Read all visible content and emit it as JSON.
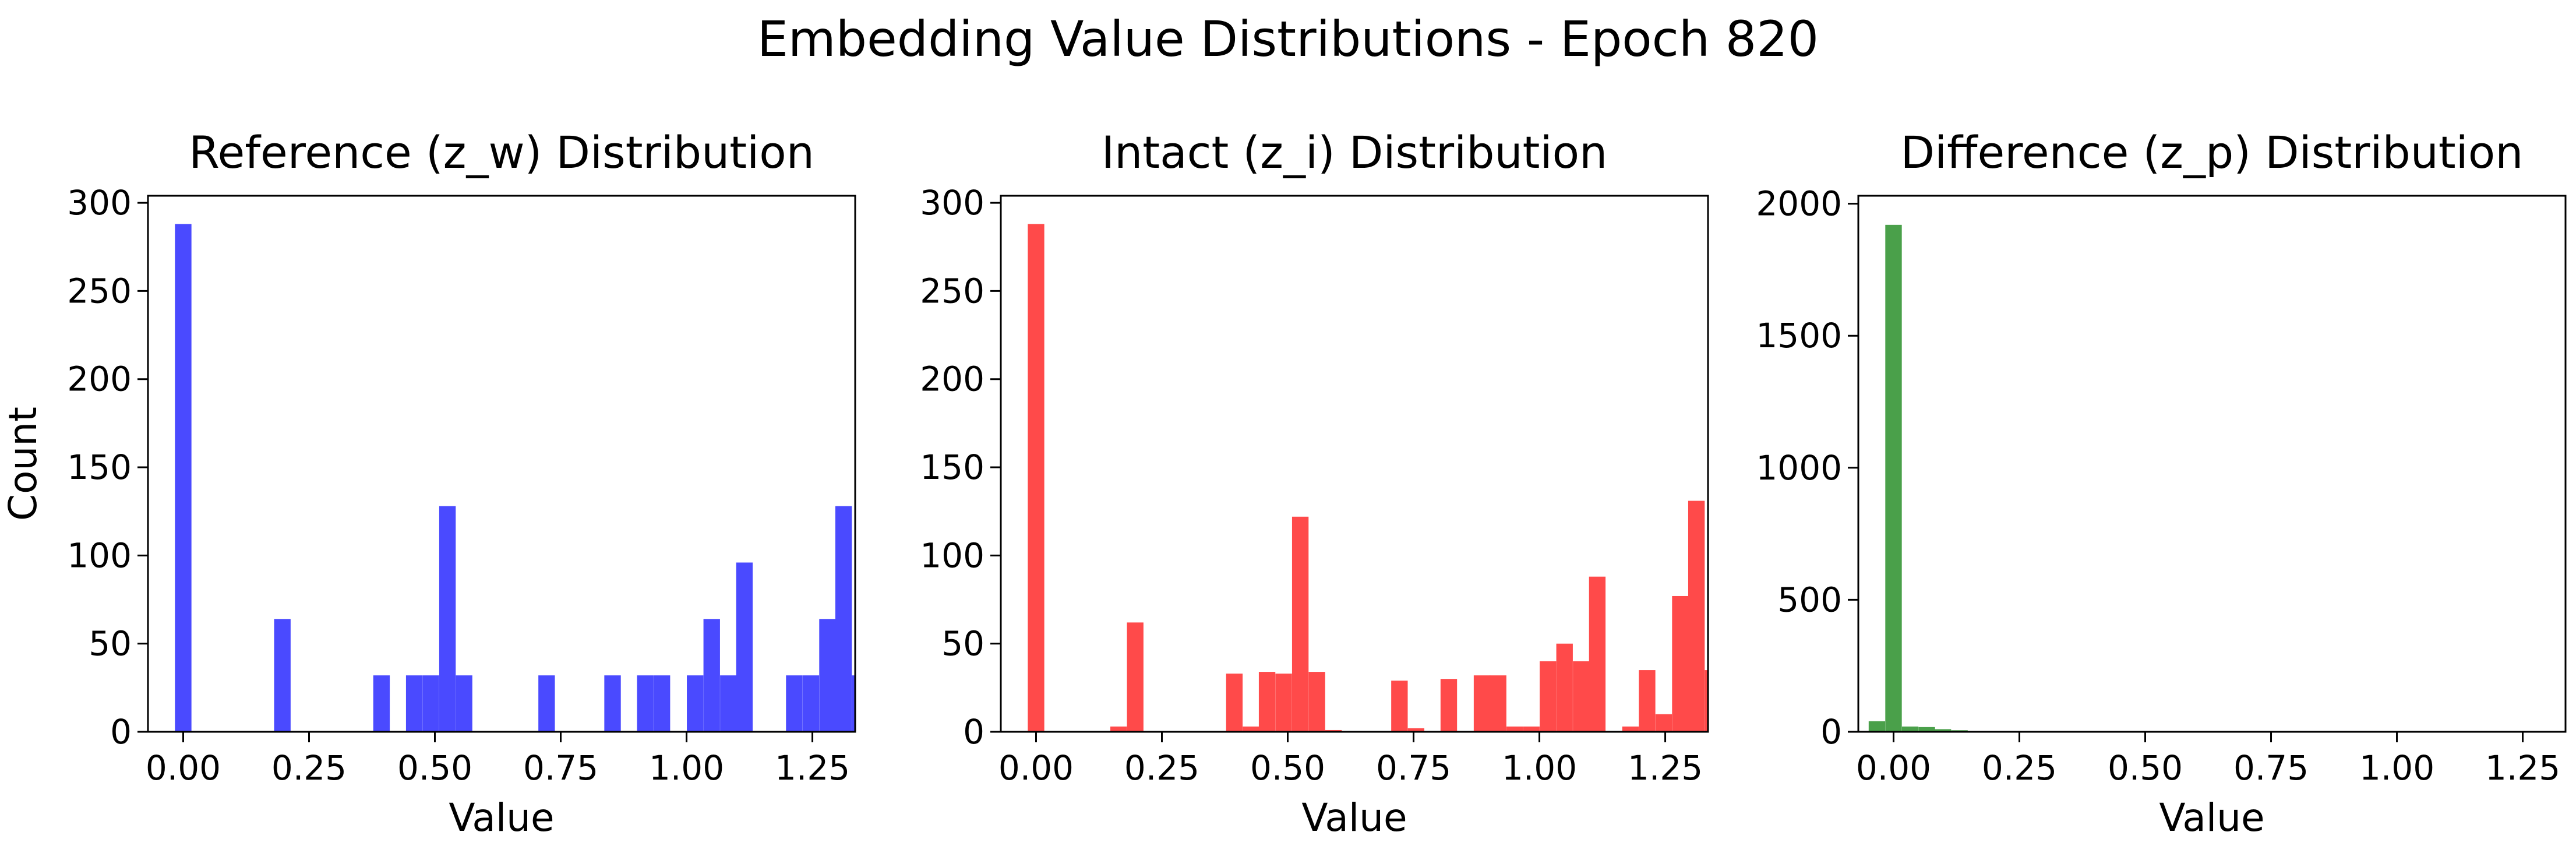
{
  "figure": {
    "title": "Embedding Value Distributions - Epoch 820"
  },
  "chart_data": [
    {
      "type": "bar",
      "title": "Reference (z_w) Distribution",
      "xlabel": "Value",
      "ylabel": "Count",
      "color": "#4a4aff",
      "xlim": [
        -0.07,
        1.335
      ],
      "ylim": [
        0,
        304
      ],
      "xticks": [
        "0.00",
        "0.25",
        "0.50",
        "0.75",
        "1.00",
        "1.25"
      ],
      "xtick_values": [
        0.0,
        0.25,
        0.5,
        0.75,
        1.0,
        1.25
      ],
      "yticks": [
        "0",
        "50",
        "100",
        "150",
        "200",
        "250",
        "300"
      ],
      "ytick_values": [
        0,
        50,
        100,
        150,
        200,
        250,
        300
      ],
      "bin_width": 0.0328,
      "bins": [
        {
          "x": 0.0,
          "count": 288
        },
        {
          "x": 0.197,
          "count": 64
        },
        {
          "x": 0.394,
          "count": 32
        },
        {
          "x": 0.459,
          "count": 32
        },
        {
          "x": 0.492,
          "count": 32
        },
        {
          "x": 0.525,
          "count": 128
        },
        {
          "x": 0.558,
          "count": 32
        },
        {
          "x": 0.722,
          "count": 32
        },
        {
          "x": 0.853,
          "count": 32
        },
        {
          "x": 0.918,
          "count": 32
        },
        {
          "x": 0.951,
          "count": 32
        },
        {
          "x": 1.017,
          "count": 32
        },
        {
          "x": 1.05,
          "count": 64
        },
        {
          "x": 1.083,
          "count": 32
        },
        {
          "x": 1.115,
          "count": 96
        },
        {
          "x": 1.214,
          "count": 32
        },
        {
          "x": 1.247,
          "count": 32
        },
        {
          "x": 1.28,
          "count": 64
        },
        {
          "x": 1.312,
          "count": 128
        },
        {
          "x": 1.345,
          "count": 32
        }
      ]
    },
    {
      "type": "bar",
      "title": "Intact (z_i) Distribution",
      "xlabel": "Value",
      "ylabel": "",
      "color": "#ff4a4a",
      "xlim": [
        -0.07,
        1.335
      ],
      "ylim": [
        0,
        304
      ],
      "xticks": [
        "0.00",
        "0.25",
        "0.50",
        "0.75",
        "1.00",
        "1.25"
      ],
      "xtick_values": [
        0.0,
        0.25,
        0.5,
        0.75,
        1.0,
        1.25
      ],
      "yticks": [
        "0",
        "50",
        "100",
        "150",
        "200",
        "250",
        "300"
      ],
      "ytick_values": [
        0,
        50,
        100,
        150,
        200,
        250,
        300
      ],
      "bin_width": 0.0328,
      "bins": [
        {
          "x": 0.0,
          "count": 288
        },
        {
          "x": 0.164,
          "count": 3
        },
        {
          "x": 0.197,
          "count": 62
        },
        {
          "x": 0.394,
          "count": 33
        },
        {
          "x": 0.427,
          "count": 3
        },
        {
          "x": 0.459,
          "count": 34
        },
        {
          "x": 0.492,
          "count": 33
        },
        {
          "x": 0.525,
          "count": 122
        },
        {
          "x": 0.558,
          "count": 34
        },
        {
          "x": 0.591,
          "count": 1
        },
        {
          "x": 0.722,
          "count": 29
        },
        {
          "x": 0.755,
          "count": 2
        },
        {
          "x": 0.82,
          "count": 30
        },
        {
          "x": 0.886,
          "count": 32
        },
        {
          "x": 0.918,
          "count": 32
        },
        {
          "x": 0.951,
          "count": 3
        },
        {
          "x": 0.984,
          "count": 3
        },
        {
          "x": 1.017,
          "count": 40
        },
        {
          "x": 1.05,
          "count": 50
        },
        {
          "x": 1.083,
          "count": 40
        },
        {
          "x": 1.115,
          "count": 88
        },
        {
          "x": 1.181,
          "count": 3
        },
        {
          "x": 1.214,
          "count": 35
        },
        {
          "x": 1.247,
          "count": 10
        },
        {
          "x": 1.28,
          "count": 77
        },
        {
          "x": 1.312,
          "count": 131
        },
        {
          "x": 1.345,
          "count": 35
        }
      ]
    },
    {
      "type": "bar",
      "title": "Difference (z_p) Distribution",
      "xlabel": "Value",
      "ylabel": "",
      "color": "#4aa04a",
      "xlim": [
        -0.07,
        1.335
      ],
      "ylim": [
        0,
        2030
      ],
      "xticks": [
        "0.00",
        "0.25",
        "0.50",
        "0.75",
        "1.00",
        "1.25"
      ],
      "xtick_values": [
        0.0,
        0.25,
        0.5,
        0.75,
        1.0,
        1.25
      ],
      "yticks": [
        "0",
        "500",
        "1000",
        "1500",
        "2000"
      ],
      "ytick_values": [
        0,
        500,
        1000,
        1500,
        2000
      ],
      "bin_width": 0.0328,
      "bins": [
        {
          "x": -0.033,
          "count": 40
        },
        {
          "x": 0.0,
          "count": 1920
        },
        {
          "x": 0.033,
          "count": 20
        },
        {
          "x": 0.066,
          "count": 18
        },
        {
          "x": 0.098,
          "count": 10
        },
        {
          "x": 0.131,
          "count": 6
        },
        {
          "x": 0.164,
          "count": 2
        },
        {
          "x": 0.197,
          "count": 1
        }
      ]
    }
  ]
}
